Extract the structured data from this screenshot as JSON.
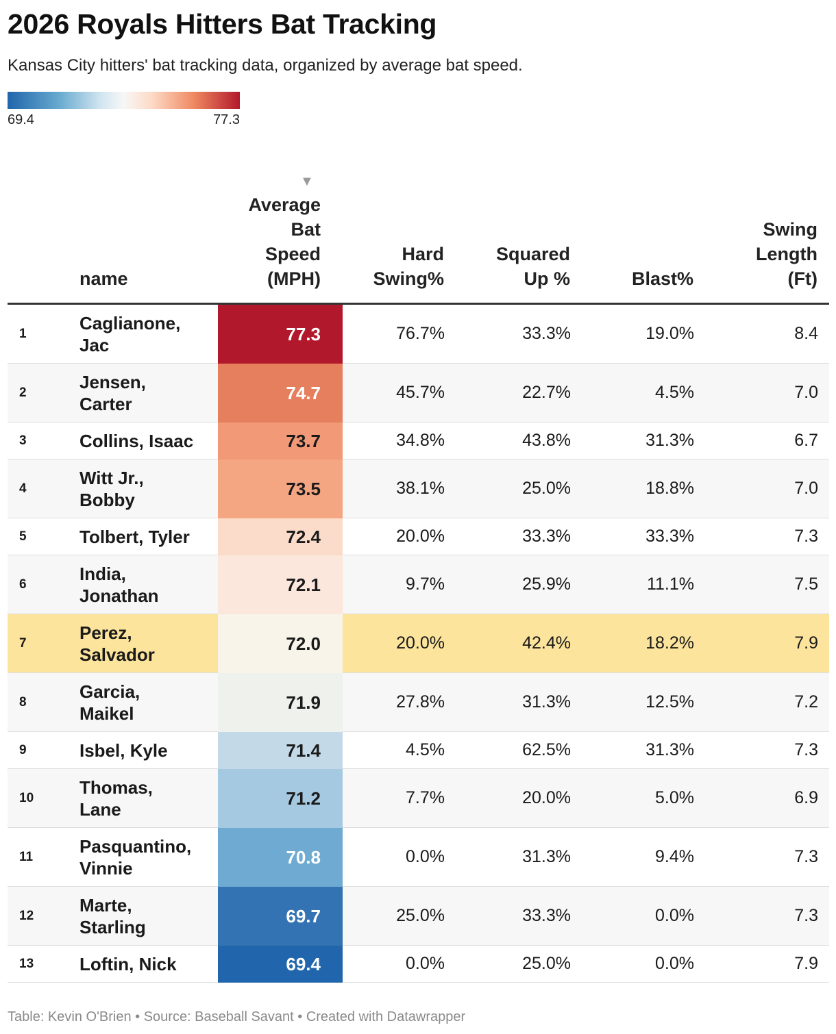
{
  "title": "2026 Royals Hitters Bat Tracking",
  "subtitle": "Kansas City hitters' bat tracking data, organized by average bat speed.",
  "legend": {
    "min": "69.4",
    "max": "77.3",
    "colors": [
      "#2166ac",
      "#67a9cf",
      "#d1e5f0",
      "#f7f7f7",
      "#fddbc7",
      "#ef8a62",
      "#b2182b"
    ]
  },
  "highlight_color": "#fde49c",
  "headers": {
    "name": "name",
    "bat_speed": [
      "Average",
      "Bat",
      "Speed",
      "(MPH)"
    ],
    "hard_swing": [
      "Hard",
      "Swing%"
    ],
    "squared_up": [
      "Squared",
      "Up %"
    ],
    "blast": "Blast%",
    "swing_length": [
      "Swing",
      "Length",
      "(Ft)"
    ]
  },
  "sort_indicator": "▼",
  "footer": "Table: Kevin O'Brien • Source: Baseball Savant • Created with Datawrapper",
  "chart_data": {
    "type": "table",
    "title": "2026 Royals Hitters Bat Tracking",
    "sorted_by": "Average Bat Speed (MPH)",
    "color_scale": {
      "min": 69.4,
      "max": 77.3
    },
    "highlighted_rank": 7,
    "rows": [
      {
        "rank": "1",
        "name": [
          "Caglianone,",
          "Jac"
        ],
        "bat_speed": "77.3",
        "hard_swing": "76.7%",
        "squared_up": "33.3%",
        "blast": "19.0%",
        "swing_length": "8.4",
        "bg": "#b2182b",
        "fg": "#ffffff"
      },
      {
        "rank": "2",
        "name": [
          "Jensen,",
          "Carter"
        ],
        "bat_speed": "74.7",
        "hard_swing": "45.7%",
        "squared_up": "22.7%",
        "blast": "4.5%",
        "swing_length": "7.0",
        "bg": "#e67f5e",
        "fg": "#ffffff"
      },
      {
        "rank": "3",
        "name": [
          "Collins, Isaac"
        ],
        "bat_speed": "73.7",
        "hard_swing": "34.8%",
        "squared_up": "43.8%",
        "blast": "31.3%",
        "swing_length": "6.7",
        "bg": "#f29a77",
        "fg": "#1a1a1a"
      },
      {
        "rank": "4",
        "name": [
          "Witt Jr.,",
          "Bobby"
        ],
        "bat_speed": "73.5",
        "hard_swing": "38.1%",
        "squared_up": "25.0%",
        "blast": "18.8%",
        "swing_length": "7.0",
        "bg": "#f4a582",
        "fg": "#1a1a1a"
      },
      {
        "rank": "5",
        "name": [
          "Tolbert, Tyler"
        ],
        "bat_speed": "72.4",
        "hard_swing": "20.0%",
        "squared_up": "33.3%",
        "blast": "33.3%",
        "swing_length": "7.3",
        "bg": "#fbdcca",
        "fg": "#1a1a1a"
      },
      {
        "rank": "6",
        "name": [
          "India,",
          "Jonathan"
        ],
        "bat_speed": "72.1",
        "hard_swing": "9.7%",
        "squared_up": "25.9%",
        "blast": "11.1%",
        "swing_length": "7.5",
        "bg": "#fbe7db",
        "fg": "#1a1a1a"
      },
      {
        "rank": "7",
        "name": [
          "Perez,",
          "Salvador"
        ],
        "bat_speed": "72.0",
        "hard_swing": "20.0%",
        "squared_up": "42.4%",
        "blast": "18.2%",
        "swing_length": "7.9",
        "bg": "#f8f4ea",
        "fg": "#1a1a1a"
      },
      {
        "rank": "8",
        "name": [
          "Garcia,",
          "Maikel"
        ],
        "bat_speed": "71.9",
        "hard_swing": "27.8%",
        "squared_up": "31.3%",
        "blast": "12.5%",
        "swing_length": "7.2",
        "bg": "#eff1ed",
        "fg": "#1a1a1a"
      },
      {
        "rank": "9",
        "name": [
          "Isbel, Kyle"
        ],
        "bat_speed": "71.4",
        "hard_swing": "4.5%",
        "squared_up": "62.5%",
        "blast": "31.3%",
        "swing_length": "7.3",
        "bg": "#c3d9e8",
        "fg": "#1a1a1a"
      },
      {
        "rank": "10",
        "name": [
          "Thomas,",
          "Lane"
        ],
        "bat_speed": "71.2",
        "hard_swing": "7.7%",
        "squared_up": "20.0%",
        "blast": "5.0%",
        "swing_length": "6.9",
        "bg": "#a5c9e1",
        "fg": "#1a1a1a"
      },
      {
        "rank": "11",
        "name": [
          "Pasquantino,",
          "Vinnie"
        ],
        "bat_speed": "70.8",
        "hard_swing": "0.0%",
        "squared_up": "31.3%",
        "blast": "9.4%",
        "swing_length": "7.3",
        "bg": "#6eaad2",
        "fg": "#ffffff"
      },
      {
        "rank": "12",
        "name": [
          "Marte,",
          "Starling"
        ],
        "bat_speed": "69.7",
        "hard_swing": "25.0%",
        "squared_up": "33.3%",
        "blast": "0.0%",
        "swing_length": "7.3",
        "bg": "#3473b3",
        "fg": "#ffffff"
      },
      {
        "rank": "13",
        "name": [
          "Loftin, Nick"
        ],
        "bat_speed": "69.4",
        "hard_swing": "0.0%",
        "squared_up": "25.0%",
        "blast": "0.0%",
        "swing_length": "7.9",
        "bg": "#2166ac",
        "fg": "#ffffff"
      }
    ]
  }
}
